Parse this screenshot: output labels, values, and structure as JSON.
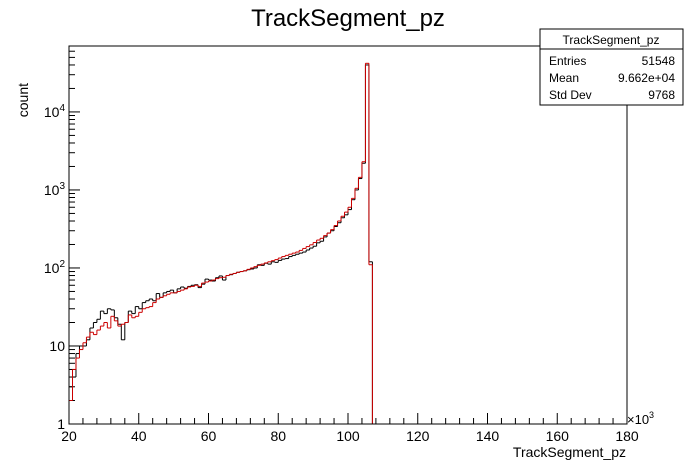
{
  "chart_data": {
    "type": "histogram",
    "title": "TrackSegment_pz",
    "xlabel": "TrackSegment_pz",
    "ylabel": "count",
    "x_multiplier": "×10",
    "x_multiplier_exp": "3",
    "xlim": [
      20,
      180
    ],
    "ylim": [
      1,
      70000
    ],
    "yscale": "log",
    "grid": false,
    "bin_width": 1,
    "x_ticks": [
      20,
      40,
      60,
      80,
      100,
      120,
      140,
      160,
      180
    ],
    "y_ticks": [
      {
        "value": 1,
        "label": "1",
        "exp": ""
      },
      {
        "value": 10,
        "label": "10",
        "exp": ""
      },
      {
        "value": 100,
        "label": "10",
        "exp": "2"
      },
      {
        "value": 1000,
        "label": "10",
        "exp": "3"
      },
      {
        "value": 10000,
        "label": "10",
        "exp": "4"
      }
    ],
    "series": [
      {
        "color": "#000000",
        "x_start": 20,
        "values": [
          3,
          4,
          8,
          10,
          10,
          12,
          17,
          20,
          22,
          28,
          26,
          30,
          29,
          23,
          19,
          12,
          20,
          28,
          26,
          32,
          30,
          36,
          38,
          40,
          38,
          47,
          42,
          48,
          50,
          52,
          48,
          54,
          57,
          55,
          58,
          60,
          61,
          56,
          62,
          72,
          70,
          68,
          75,
          79,
          70,
          80,
          82,
          85,
          88,
          90,
          92,
          95,
          97,
          100,
          110,
          108,
          115,
          112,
          120,
          118,
          125,
          130,
          132,
          140,
          145,
          150,
          155,
          160,
          170,
          180,
          190,
          210,
          220,
          250,
          280,
          300,
          340,
          380,
          440,
          480,
          560,
          750,
          1000,
          1400,
          2200,
          40000,
          120
        ]
      },
      {
        "color": "#cc0000",
        "x_start": 20,
        "values": [
          2,
          5,
          7,
          9,
          11,
          13,
          15,
          14,
          16,
          18,
          20,
          17,
          24,
          21,
          18,
          19,
          20,
          25,
          23,
          24,
          27,
          30,
          31,
          32,
          36,
          40,
          42,
          44,
          46,
          48,
          48,
          50,
          52,
          54,
          57,
          58,
          60,
          58,
          64,
          66,
          68,
          70,
          73,
          75,
          76,
          80,
          83,
          85,
          88,
          90,
          92,
          96,
          100,
          104,
          108,
          112,
          116,
          120,
          124,
          128,
          134,
          140,
          145,
          150,
          155,
          160,
          168,
          178,
          188,
          198,
          212,
          228,
          240,
          260,
          280,
          310,
          350,
          400,
          460,
          520,
          600,
          780,
          1050,
          1450,
          2300,
          42000,
          110
        ]
      }
    ],
    "stats": {
      "title": "TrackSegment_pz",
      "rows": [
        {
          "label": "Entries",
          "value": "51548"
        },
        {
          "label": "Mean",
          "value": "9.662e+04"
        },
        {
          "label": "Std Dev",
          "value": "9768"
        }
      ]
    }
  }
}
